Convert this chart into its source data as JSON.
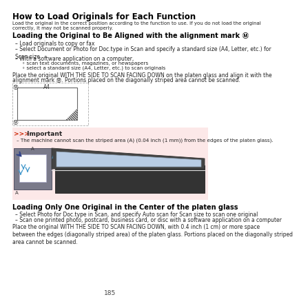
{
  "title": "How to Load Originals for Each Function",
  "intro": "Load the original in the correct position according to the function to use. If you do not load the original\ncorrectly, it may not be scanned properly.",
  "section1_title": "Loading the Original to Be Aligned with the alignment mark Ⓜ",
  "bullet1": "Load originals to copy or fax",
  "bullet2": "Select Document or Photo for Doc.type in Scan and specify a standard size (A4, Letter, etc.) for\nScan size",
  "bullet3": "With a software application on a computer,",
  "sub_bullet1": "scan text documents, magazines, or newspapers",
  "sub_bullet2": "select a standard size (A4, Letter, etc.) to scan originals",
  "para1a": "Place the original WITH THE SIDE TO SCAN FACING DOWN on the platen glass and align it with the",
  "para1b": "alignment mark Ⓜ. Portions placed on the diagonally striped area cannot be scanned.",
  "label_a4": "A4",
  "important_icon": ">>>",
  "important_title": " Important",
  "important_bullet": "The machine cannot scan the striped area (A) (0.04 inch (1 mm)) from the edges of the platen glass).",
  "section2_title": "Loading Only One Original in the Center of the platen glass",
  "s2_bullet1": "Select Photo for Doc.type in Scan, and specify Auto scan for Scan size to scan one original",
  "s2_bullet2": "Scan one printed photo, postcard, business card, or disc with a software application on a computer",
  "para2": "Place the original WITH THE SIDE TO SCAN FACING DOWN, with 0.4 inch (1 cm) or more space\nbetween the edges (diagonally striped area) of the platen glass. Portions placed on the diagonally striped\narea cannot be scanned.",
  "page_num": "185",
  "bg_color": "#ffffff",
  "important_bg": "#fce8e8",
  "important_bar_color": "#cc2200",
  "title_color": "#000000",
  "text_color": "#222222",
  "section_title_color": "#000000",
  "gray_bg": "#c8c8c8",
  "blue_arrow": "#4499cc"
}
